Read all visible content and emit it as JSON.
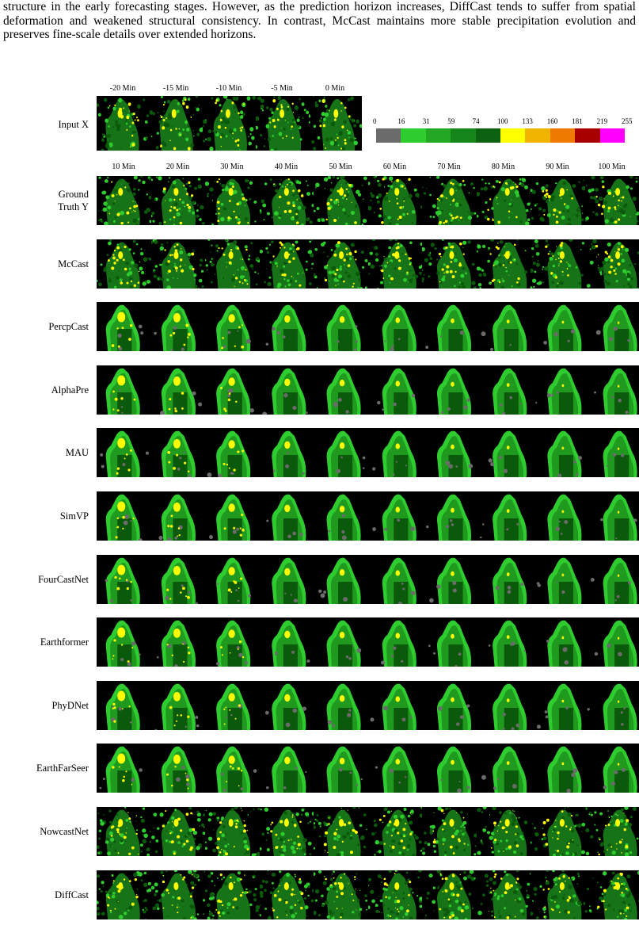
{
  "paragraph": "structure in the early forecasting stages. However, as the prediction horizon increases, DiffCast tends to suffer from spatial deformation and weakened structural consistency. In contrast, McCast maintains more stable precipitation evolution and preserves fine-scale details over extended horizons.",
  "input_row": {
    "label": "Input X",
    "times": [
      "-20 Min",
      "-15 Min",
      "-10 Min",
      "-5 Min",
      "0 Min"
    ]
  },
  "output_times": [
    "10 Min",
    "20 Min",
    "30 Min",
    "40 Min",
    "50 Min",
    "60 Min",
    "70 Min",
    "80 Min",
    "90 Min",
    "100 Min"
  ],
  "rows": [
    {
      "label_lines": [
        "Ground",
        "Truth Y"
      ],
      "style": "detailed"
    },
    {
      "label_lines": [
        "McCast"
      ],
      "style": "detailed"
    },
    {
      "label_lines": [
        "PercpCast"
      ],
      "style": "smooth"
    },
    {
      "label_lines": [
        "AlphaPre"
      ],
      "style": "smooth"
    },
    {
      "label_lines": [
        "MAU"
      ],
      "style": "smooth"
    },
    {
      "label_lines": [
        "SimVP"
      ],
      "style": "smooth"
    },
    {
      "label_lines": [
        "FourCastNet"
      ],
      "style": "smooth"
    },
    {
      "label_lines": [
        "Earthformer"
      ],
      "style": "smooth"
    },
    {
      "label_lines": [
        "PhyDNet"
      ],
      "style": "smooth"
    },
    {
      "label_lines": [
        "EarthFarSeer"
      ],
      "style": "smooth"
    },
    {
      "label_lines": [
        "NowcastNet"
      ],
      "style": "detailed"
    },
    {
      "label_lines": [
        "DiffCast"
      ],
      "style": "detailed"
    }
  ],
  "colorbar": {
    "ticks": [
      "0",
      "16",
      "31",
      "59",
      "74",
      "100",
      "133",
      "160",
      "181",
      "219",
      "255"
    ],
    "colors": [
      "#6b6b6b",
      "#2ecc2e",
      "#22a822",
      "#15861a",
      "#0c6210",
      "#ffff00",
      "#f0b400",
      "#ee7a00",
      "#a80000",
      "#ff00ff"
    ]
  },
  "palette": {
    "background": "#000000",
    "light_green": "#2ecc2e",
    "mid_green": "#1f9a1f",
    "dark_green": "#0b5a0b",
    "yellow": "#ffff00",
    "gray": "#6b6b6b"
  }
}
